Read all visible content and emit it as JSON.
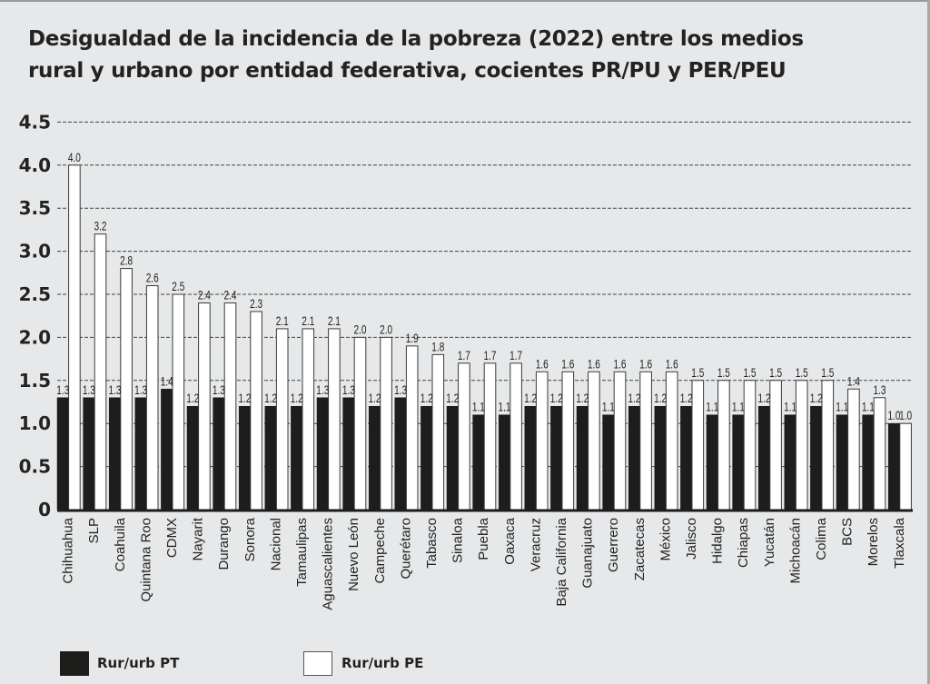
{
  "chart_data": {
    "type": "bar",
    "title": "Desigualdad de la incidencia de la pobreza (2022) entre los medios rural y urbano por entidad federativa, cocientes PR/PU y PER/PEU",
    "title_lines": [
      "Desigualdad de la incidencia de la pobreza (2022) entre los medios",
      "rural y urbano por entidad federativa, cocientes PR/PU y PER/PEU"
    ],
    "xlabel": "",
    "ylabel": "",
    "ylim": [
      0,
      4.5
    ],
    "yticks": [
      0,
      0.5,
      1.0,
      1.5,
      2.0,
      2.5,
      3.0,
      3.5,
      4.0,
      4.5
    ],
    "ytick_labels": [
      "0",
      "0.5",
      "1.0",
      "1.5",
      "2.0",
      "2.5",
      "3.0",
      "3.5",
      "4.0",
      "4.5"
    ],
    "grid": true,
    "legend_position": "bottom-left",
    "categories": [
      "Chihuahua",
      "SLP",
      "Coahuila",
      "Quintana Roo",
      "CDMX",
      "Nayarit",
      "Durango",
      "Sonora",
      "Nacional",
      "Tamaulipas",
      "Aguascalientes",
      "Nuevo León",
      "Campeche",
      "Querétaro",
      "Tabasco",
      "Sinaloa",
      "Puebla",
      "Oaxaca",
      "Veracruz",
      "Baja California",
      "Guanajuato",
      "Guerrero",
      "Zacatecas",
      "México",
      "Jalisco",
      "Hidalgo",
      "Chiapas",
      "Yucatán",
      "Michoacán",
      "Colima",
      "BCS",
      "Morelos",
      "Tlaxcala"
    ],
    "series": [
      {
        "name": "Rur/urb PT",
        "color": "#1d1d1b",
        "values": [
          1.3,
          1.3,
          1.3,
          1.3,
          1.4,
          1.2,
          1.3,
          1.2,
          1.2,
          1.2,
          1.3,
          1.3,
          1.2,
          1.3,
          1.2,
          1.2,
          1.1,
          1.1,
          1.2,
          1.2,
          1.2,
          1.1,
          1.2,
          1.2,
          1.2,
          1.1,
          1.1,
          1.2,
          1.1,
          1.2,
          1.1,
          1.1,
          1.0
        ],
        "labels": [
          "1.3",
          "1.3",
          "1.3",
          "1.3",
          "1.4",
          "1.2",
          "1.3",
          "1.2",
          "1.2",
          "1.2",
          "1.3",
          "1.3",
          "1.2",
          "1.3",
          "1.2",
          "1.2",
          "1.1",
          "1.1",
          "1.2",
          "1.2",
          "1.2",
          "1.1",
          "1.2",
          "1.2",
          "1.2",
          "1.1",
          "1.1",
          "1.2",
          "1.1",
          "1.2",
          "1.1",
          "1.1",
          "1.0"
        ]
      },
      {
        "name": "Rur/urb PE",
        "color": "#ffffff",
        "values": [
          4.0,
          3.2,
          2.8,
          2.6,
          2.5,
          2.4,
          2.4,
          2.3,
          2.1,
          2.1,
          2.1,
          2.0,
          2.0,
          1.9,
          1.8,
          1.7,
          1.7,
          1.7,
          1.6,
          1.6,
          1.6,
          1.6,
          1.6,
          1.6,
          1.5,
          1.5,
          1.5,
          1.5,
          1.5,
          1.5,
          1.4,
          1.3,
          1.0
        ],
        "labels": [
          "4.0",
          "3.2",
          "2.8",
          "2.6",
          "2.5",
          "2.4",
          "2.4",
          "2.3",
          "2.1",
          "2.1",
          "2.1",
          "2.0",
          "2.0",
          "1.9",
          "1.8",
          "1.7",
          "1.7",
          "1.7",
          "1.6",
          "1.6",
          "1.6",
          "1.6",
          "1.6",
          "1.6",
          "1.5",
          "1.5",
          "1.5",
          "1.5",
          "1.5",
          "1.5",
          "1.4",
          "1.3",
          "1.0"
        ]
      }
    ]
  },
  "legend": {
    "items": [
      {
        "label": "Rur/urb PT",
        "color": "#1d1d1b"
      },
      {
        "label": "Rur/urb PE",
        "color": "#ffffff"
      }
    ]
  }
}
